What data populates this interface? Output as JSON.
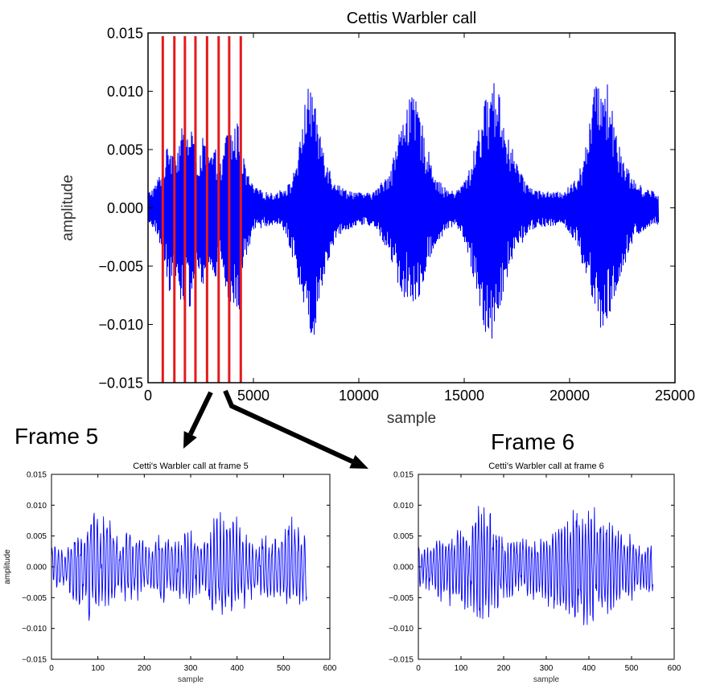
{
  "annotations": {
    "frame5_label": "Frame 5",
    "frame6_label": "Frame 6",
    "frame_line_color": "#e31a1c",
    "arrow_color": "#000000"
  },
  "chart_data": [
    {
      "id": "main",
      "type": "line",
      "title": "Cettis Warbler call",
      "xlabel": "sample",
      "ylabel": "amplitude",
      "xlim": [
        0,
        25000
      ],
      "ylim": [
        -0.015,
        0.015
      ],
      "xticks": [
        0,
        5000,
        10000,
        15000,
        20000,
        25000
      ],
      "xtick_labels": [
        "0",
        "5000",
        "10000",
        "15000",
        "20000",
        "25000"
      ],
      "yticks": [
        0.015,
        0.01,
        0.005,
        0.0,
        -0.005,
        -0.01,
        -0.015
      ],
      "ytick_labels": [
        "0.015",
        "0.010",
        "0.005",
        "0.000",
        "−0.005",
        "−0.010",
        "−0.015"
      ],
      "grid": false,
      "series": [
        {
          "color": "#0000ff",
          "envelope": {
            "x": [
              0,
              300,
              700,
              1000,
              1300,
              1600,
              1850,
              2100,
              2300,
              2600,
              2900,
              3200,
              3500,
              3750,
              4000,
              4300,
              4600,
              5000,
              5500,
              6000,
              6500,
              6800,
              7200,
              7500,
              7800,
              8000,
              8300,
              8700,
              9200,
              9800,
              10300,
              10800,
              11400,
              11800,
              12300,
              12800,
              13200,
              13700,
              14200,
              14600,
              14900,
              15300,
              15800,
              16200,
              16600,
              16900,
              17300,
              17800,
              18300,
              18800,
              19300,
              19800,
              20300,
              20800,
              21200,
              21600,
              22100,
              22600,
              23100,
              23600,
              24000,
              24200
            ],
            "upper": [
              0.0013,
              0.0018,
              0.0035,
              0.006,
              0.0045,
              0.0068,
              0.0062,
              0.0075,
              0.0038,
              0.006,
              0.0045,
              0.005,
              0.0035,
              0.0072,
              0.0065,
              0.0075,
              0.0035,
              0.0018,
              0.0014,
              0.0012,
              0.0018,
              0.0022,
              0.0055,
              0.01,
              0.0108,
              0.0075,
              0.0058,
              0.0028,
              0.0017,
              0.0014,
              0.0012,
              0.0015,
              0.003,
              0.0055,
              0.0098,
              0.009,
              0.0055,
              0.0025,
              0.0015,
              0.0014,
              0.002,
              0.0035,
              0.008,
              0.0105,
              0.011,
              0.0072,
              0.005,
              0.0025,
              0.0016,
              0.0014,
              0.0013,
              0.0015,
              0.0025,
              0.0055,
              0.0105,
              0.0122,
              0.008,
              0.004,
              0.0022,
              0.0017,
              0.0014,
              0.0012
            ],
            "lower": [
              -0.0016,
              -0.0018,
              -0.004,
              -0.0072,
              -0.006,
              -0.0085,
              -0.0092,
              -0.0078,
              -0.0045,
              -0.0072,
              -0.0055,
              -0.006,
              -0.0045,
              -0.0088,
              -0.0085,
              -0.0092,
              -0.0045,
              -0.002,
              -0.0016,
              -0.0014,
              -0.0022,
              -0.004,
              -0.0068,
              -0.0095,
              -0.0118,
              -0.009,
              -0.0065,
              -0.0035,
              -0.002,
              -0.0016,
              -0.0014,
              -0.0018,
              -0.0038,
              -0.0065,
              -0.0085,
              -0.0078,
              -0.0055,
              -0.003,
              -0.0018,
              -0.0016,
              -0.0025,
              -0.005,
              -0.0098,
              -0.012,
              -0.009,
              -0.007,
              -0.0045,
              -0.0028,
              -0.0018,
              -0.0016,
              -0.0015,
              -0.0018,
              -0.003,
              -0.0068,
              -0.0095,
              -0.011,
              -0.0085,
              -0.005,
              -0.0025,
              -0.0018,
              -0.0016,
              -0.0014
            ]
          }
        }
      ],
      "frame_markers_x": [
        700,
        1250,
        1750,
        2250,
        2800,
        3350,
        3850,
        4400
      ]
    },
    {
      "id": "frame5",
      "type": "line",
      "title": "Cetti's Warbler call at frame 5",
      "xlabel": "sample",
      "ylabel": "amplitude",
      "xlim": [
        0,
        600
      ],
      "ylim": [
        -0.015,
        0.015
      ],
      "xticks": [
        0,
        100,
        200,
        300,
        400,
        500,
        600
      ],
      "xtick_labels": [
        "0",
        "100",
        "200",
        "300",
        "400",
        "500",
        "600"
      ],
      "yticks": [
        0.015,
        0.01,
        0.005,
        0.0,
        -0.005,
        -0.01,
        -0.015
      ],
      "ytick_labels": [
        "0.015",
        "0.010",
        "0.005",
        "0.000",
        "−0.005",
        "−0.010",
        "−0.015"
      ],
      "grid": false,
      "series": [
        {
          "color": "#0000ff",
          "num_samples": 551,
          "envelope": {
            "x": [
              0,
              10,
              30,
              45,
              55,
              70,
              80,
              95,
              105,
              120,
              135,
              150,
              165,
              180,
              195,
              210,
              225,
              240,
              255,
              270,
              285,
              300,
              315,
              330,
              345,
              355,
              370,
              385,
              400,
              415,
              430,
              445,
              460,
              475,
              490,
              505,
              515,
              530,
              545,
              550
            ],
            "upper": [
              0.0035,
              0.004,
              0.0025,
              0.005,
              0.007,
              0.0055,
              0.009,
              0.01,
              0.007,
              0.011,
              0.006,
              0.004,
              0.0065,
              0.006,
              0.005,
              0.004,
              0.0058,
              0.006,
              0.0055,
              0.0045,
              0.0065,
              0.006,
              0.005,
              0.0045,
              0.0075,
              0.011,
              0.01,
              0.0085,
              0.01,
              0.006,
              0.0045,
              0.005,
              0.006,
              0.0045,
              0.0055,
              0.009,
              0.0085,
              0.007,
              0.007,
              0.005
            ],
            "lower": [
              -0.0035,
              -0.0045,
              -0.003,
              -0.006,
              -0.0085,
              -0.007,
              -0.0095,
              -0.008,
              -0.0075,
              -0.0085,
              -0.006,
              -0.005,
              -0.0065,
              -0.006,
              -0.005,
              -0.004,
              -0.006,
              -0.0075,
              -0.0055,
              -0.005,
              -0.006,
              -0.0075,
              -0.0045,
              -0.005,
              -0.008,
              -0.01,
              -0.0095,
              -0.009,
              -0.008,
              -0.007,
              -0.0055,
              -0.005,
              -0.006,
              -0.006,
              -0.0065,
              -0.008,
              -0.007,
              -0.006,
              -0.0075,
              -0.006
            ]
          }
        }
      ]
    },
    {
      "id": "frame6",
      "type": "line",
      "title": "Cetti's Warbler call at frame 6",
      "xlabel": "sample",
      "ylabel": "amplitude",
      "xlim": [
        0,
        600
      ],
      "ylim": [
        -0.015,
        0.015
      ],
      "xticks": [
        0,
        100,
        200,
        300,
        400,
        500,
        600
      ],
      "xtick_labels": [
        "0",
        "100",
        "200",
        "300",
        "400",
        "500",
        "600"
      ],
      "yticks": [
        0.015,
        0.01,
        0.005,
        0.0,
        -0.005,
        -0.01,
        -0.015
      ],
      "ytick_labels": [
        "0.015",
        "0.010",
        "0.005",
        "0.000",
        "−0.005",
        "−0.010",
        "−0.015"
      ],
      "grid": false,
      "series": [
        {
          "color": "#0000ff",
          "num_samples": 551,
          "envelope": {
            "x": [
              0,
              15,
              30,
              45,
              60,
              75,
              90,
              105,
              120,
              140,
              155,
              170,
              185,
              200,
              215,
              230,
              245,
              260,
              275,
              290,
              305,
              320,
              335,
              350,
              365,
              380,
              395,
              410,
              425,
              440,
              455,
              470,
              485,
              500,
              515,
              530,
              545,
              550
            ],
            "upper": [
              0.004,
              0.0035,
              0.003,
              0.006,
              0.0055,
              0.005,
              0.007,
              0.008,
              0.006,
              0.011,
              0.0105,
              0.0095,
              0.007,
              0.006,
              0.0055,
              0.006,
              0.005,
              0.0055,
              0.005,
              0.005,
              0.006,
              0.007,
              0.008,
              0.009,
              0.0115,
              0.0085,
              0.0095,
              0.011,
              0.0095,
              0.008,
              0.007,
              0.006,
              0.005,
              0.0055,
              0.004,
              0.0035,
              0.005,
              0.004
            ],
            "lower": [
              -0.004,
              -0.0035,
              -0.004,
              -0.006,
              -0.0055,
              -0.007,
              -0.008,
              -0.0075,
              -0.007,
              -0.01,
              -0.009,
              -0.0085,
              -0.007,
              -0.006,
              -0.0055,
              -0.006,
              -0.005,
              -0.0055,
              -0.006,
              -0.0055,
              -0.007,
              -0.008,
              -0.0075,
              -0.009,
              -0.0105,
              -0.0095,
              -0.01,
              -0.011,
              -0.0095,
              -0.0085,
              -0.0075,
              -0.006,
              -0.0055,
              -0.006,
              -0.0045,
              -0.004,
              -0.006,
              -0.0055
            ]
          }
        }
      ]
    }
  ]
}
